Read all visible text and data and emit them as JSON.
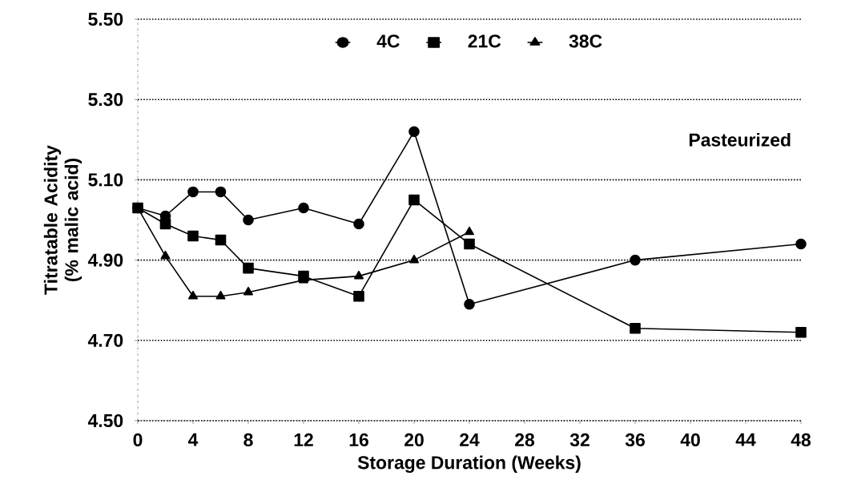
{
  "chart_data": {
    "type": "line",
    "xlabel": "Storage Duration (Weeks)",
    "ylabel": "Titratable Acidity (% malic acid)",
    "annotations": [
      "Pasteurized"
    ],
    "x": [
      0,
      2,
      4,
      6,
      8,
      12,
      16,
      20,
      24,
      36,
      48
    ],
    "series": [
      {
        "name": "4C",
        "color": "#000000",
        "marker": "circle",
        "values": [
          5.03,
          5.01,
          5.07,
          5.07,
          5.0,
          5.03,
          4.99,
          5.22,
          4.79,
          4.9,
          4.94
        ]
      },
      {
        "name": "21C",
        "color": "#000000",
        "marker": "square",
        "values": [
          5.03,
          4.99,
          4.96,
          4.95,
          4.88,
          4.86,
          4.81,
          5.05,
          4.94,
          4.73,
          4.72
        ]
      },
      {
        "name": "38C",
        "color": "#000000",
        "marker": "triangle",
        "x": [
          0,
          2,
          4,
          6,
          8,
          12,
          16,
          20,
          24
        ],
        "values": [
          5.03,
          4.91,
          4.81,
          4.81,
          4.82,
          4.85,
          4.86,
          4.9,
          4.97
        ]
      }
    ],
    "xlim": [
      0,
      48
    ],
    "xticks": [
      0,
      4,
      8,
      12,
      16,
      20,
      24,
      28,
      32,
      36,
      40,
      44,
      48
    ],
    "ylim": [
      4.5,
      5.5
    ],
    "yticks": [
      {
        "value": 4.5,
        "label": "4.50"
      },
      {
        "value": 4.7,
        "label": "4.70"
      },
      {
        "value": 4.9,
        "label": "4.90"
      },
      {
        "value": 5.1,
        "label": "5.10"
      },
      {
        "value": 5.3,
        "label": "5.30"
      },
      {
        "value": 5.5,
        "label": "5.50"
      }
    ],
    "grid": "y",
    "legend": "top",
    "line_style": "solid"
  }
}
